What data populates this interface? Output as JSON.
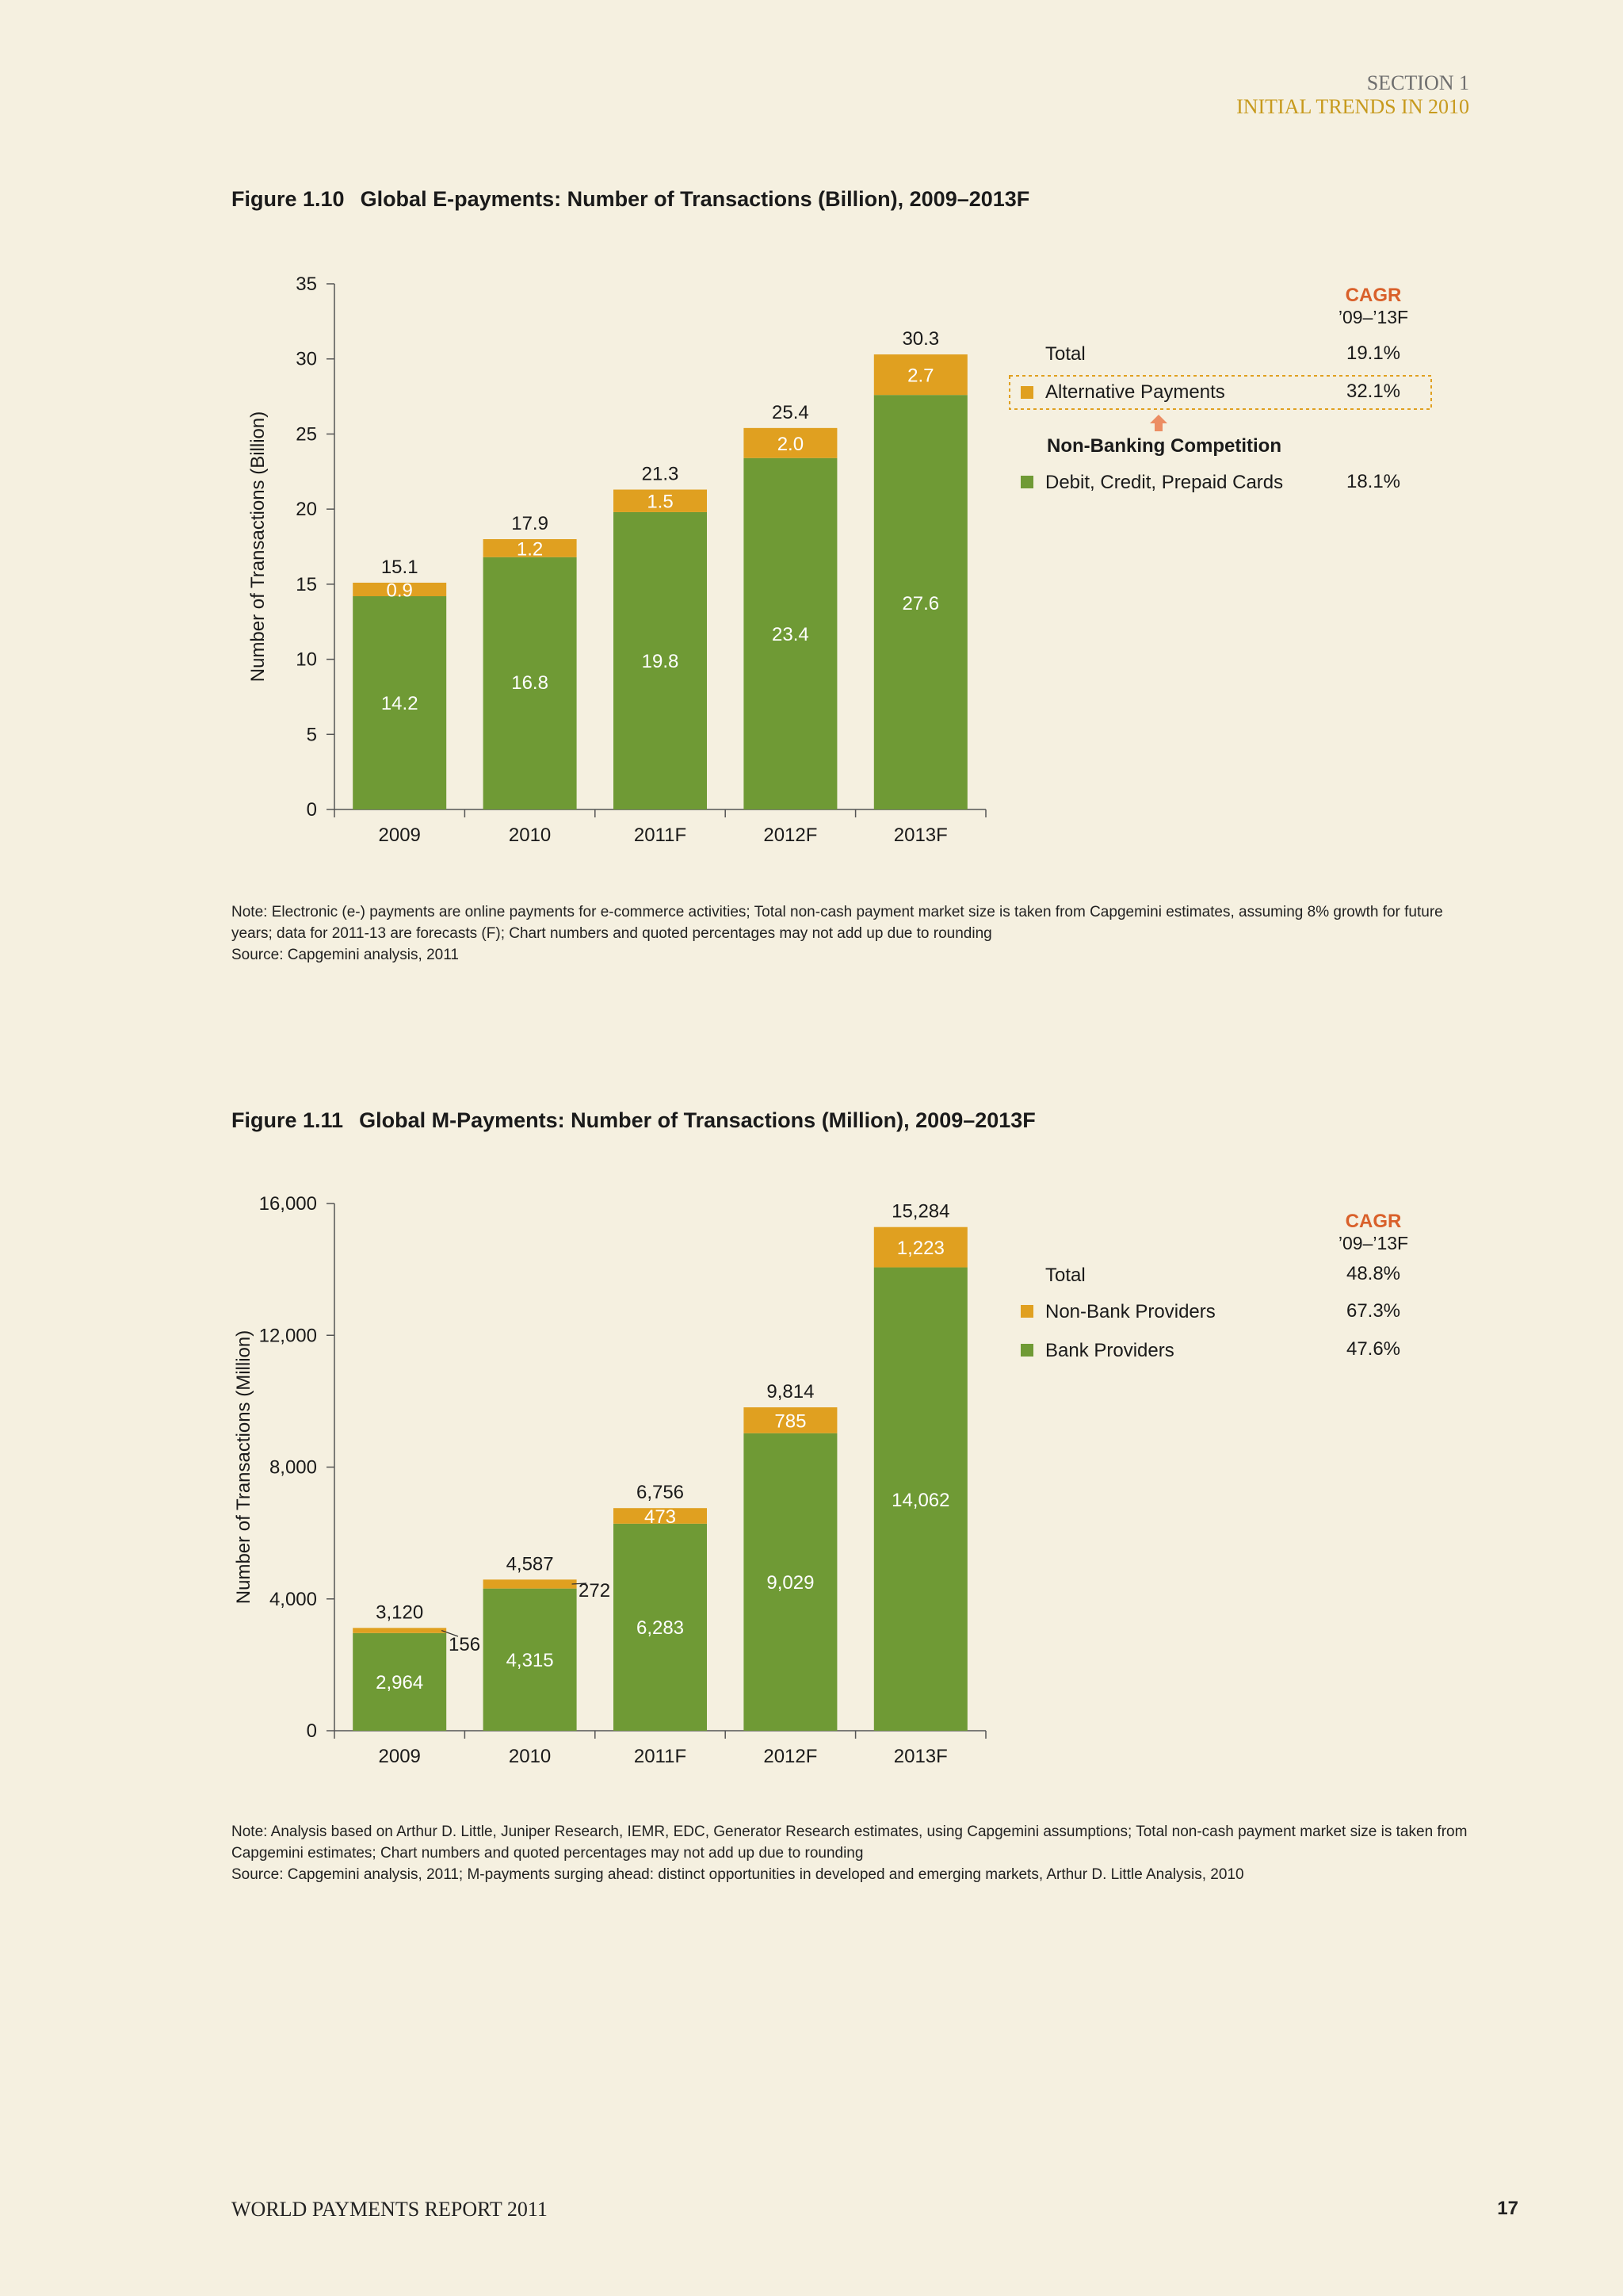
{
  "header": {
    "section": "SECTION 1",
    "subsection": "INITIAL TRENDS IN 2010"
  },
  "figures": [
    {
      "number": "Figure 1.10",
      "title": "Global E-payments: Number of Transactions (Billion), 2009–2013F",
      "note": "Note: Electronic (e-) payments are online payments for e-commerce activities; Total non-cash payment market size is taken from Capgemini estimates, assuming 8% growth for future years; data for 2011-13 are forecasts (F); Chart numbers and quoted percentages may not add up due to rounding",
      "source": "Source: Capgemini analysis, 2011",
      "legend": {
        "cagr_title": "CAGR",
        "cagr_period": "’09–’13F",
        "total_label": "Total",
        "total_cagr": "19.1%",
        "competition_label": "Non-Banking Competition"
      }
    },
    {
      "number": "Figure 1.11",
      "title": "Global M-Payments: Number of Transactions (Million), 2009–2013F",
      "note": "Note: Analysis based on Arthur D. Little, Juniper Research, IEMR, EDC, Generator Research estimates, using Capgemini assumptions; Total non-cash payment market size is taken from Capgemini estimates; Chart numbers and quoted percentages may not add up due to rounding",
      "source": "Source: Capgemini analysis, 2011; M-payments surging ahead: distinct opportunities in developed and emerging markets, Arthur D. Little Analysis, 2010",
      "legend": {
        "cagr_title": "CAGR",
        "cagr_period": "’09–’13F",
        "total_label": "Total",
        "total_cagr": "48.8%"
      }
    }
  ],
  "chart_data": [
    {
      "type": "bar",
      "stacked": true,
      "categories": [
        "2009",
        "2010",
        "2011F",
        "2012F",
        "2013F"
      ],
      "series": [
        {
          "name": "Debit, Credit, Prepaid Cards",
          "values": [
            14.2,
            16.8,
            19.8,
            23.4,
            27.6
          ],
          "labels": [
            "14.2",
            "16.8",
            "19.8",
            "23.4",
            "27.6"
          ],
          "color": "#6f9a35",
          "cagr": "18.1%"
        },
        {
          "name": "Alternative Payments",
          "values": [
            0.9,
            1.2,
            1.5,
            2.0,
            2.7
          ],
          "labels": [
            "0.9",
            "1.2",
            "1.5",
            "2.0",
            "2.7"
          ],
          "color": "#e0a020",
          "cagr": "32.1%"
        }
      ],
      "totals": [
        15.1,
        17.9,
        21.3,
        25.4,
        30.3
      ],
      "total_labels": [
        "15.1",
        "17.9",
        "21.3",
        "25.4",
        "30.3"
      ],
      "ylabel": "Number of Transactions (Billion)",
      "xlabel": "",
      "ylim": [
        0,
        35
      ],
      "yticks": [
        0,
        5,
        10,
        15,
        20,
        25,
        30,
        35
      ],
      "ytick_labels": [
        "0",
        "5",
        "10",
        "15",
        "20",
        "25",
        "30",
        "35"
      ],
      "grid": false,
      "legend_position": "right"
    },
    {
      "type": "bar",
      "stacked": true,
      "categories": [
        "2009",
        "2010",
        "2011F",
        "2012F",
        "2013F"
      ],
      "series": [
        {
          "name": "Bank Providers",
          "values": [
            2964,
            4315,
            6283,
            9029,
            14062
          ],
          "labels": [
            "2,964",
            "4,315",
            "6,283",
            "9,029",
            "14,062"
          ],
          "color": "#6f9a35",
          "cagr": "47.6%"
        },
        {
          "name": "Non-Bank Providers",
          "values": [
            156,
            272,
            473,
            785,
            1223
          ],
          "labels": [
            "156",
            "272",
            "473",
            "785",
            "1,223"
          ],
          "color": "#e0a020",
          "cagr": "67.3%"
        }
      ],
      "totals": [
        3120,
        4587,
        6756,
        9814,
        15284
      ],
      "total_labels": [
        "3,120",
        "4,587",
        "6,756",
        "9,814",
        "15,284"
      ],
      "ylabel": "Number of Transactions (Million)",
      "xlabel": "",
      "ylim": [
        0,
        16000
      ],
      "yticks": [
        0,
        4000,
        8000,
        12000,
        16000
      ],
      "ytick_labels": [
        "0",
        "4,000",
        "8,000",
        "12,000",
        "16,000"
      ],
      "grid": false,
      "legend_position": "right"
    }
  ],
  "footer": {
    "report": "WORLD PAYMENTS REPORT 2011",
    "page": "17"
  },
  "colors": {
    "background": "#f5f0e0",
    "bank_green": "#6f9a35",
    "alt_orange": "#e0a020",
    "cagr_red": "#d9602a",
    "arrow_salmon": "#ec8d63",
    "header_gold": "#c79a1d"
  }
}
